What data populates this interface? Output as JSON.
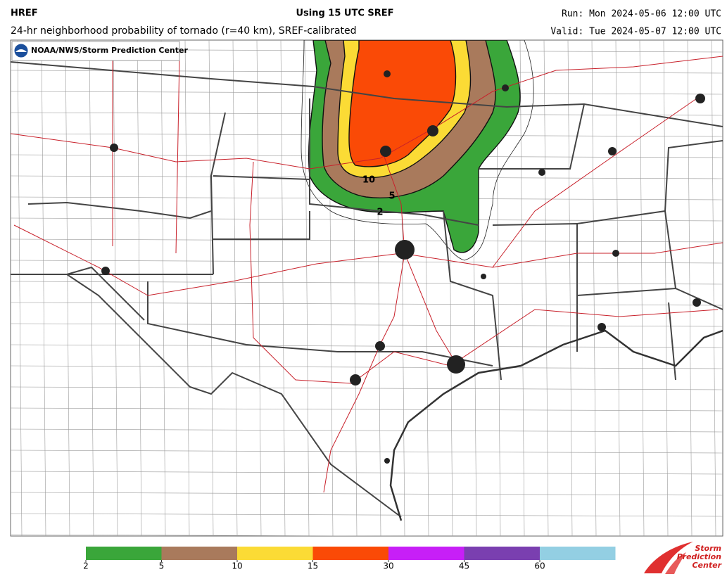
{
  "header": {
    "model": "HREF",
    "title": "Using 15 UTC SREF",
    "run": "Run: Mon 2024-05-06 12:00 UTC",
    "subtitle": "24-hr neighborhood probability of tornado (r=40 km), SREF-calibrated",
    "valid": "Valid: Tue 2024-05-07 12:00 UTC"
  },
  "credit": "NOAA/NWS/Storm Prediction Center",
  "contour_labels": [
    "10",
    "5",
    "2"
  ],
  "colorbar": {
    "ticks": [
      2,
      5,
      10,
      15,
      30,
      45,
      60
    ],
    "colors": [
      "#3aa63a",
      "#a97a5c",
      "#fbdb35",
      "#fa4a06",
      "#c71ff7",
      "#7a3fb0",
      "#93cfe3"
    ]
  },
  "logo": [
    "Storm",
    "Prediction",
    "Center"
  ]
}
